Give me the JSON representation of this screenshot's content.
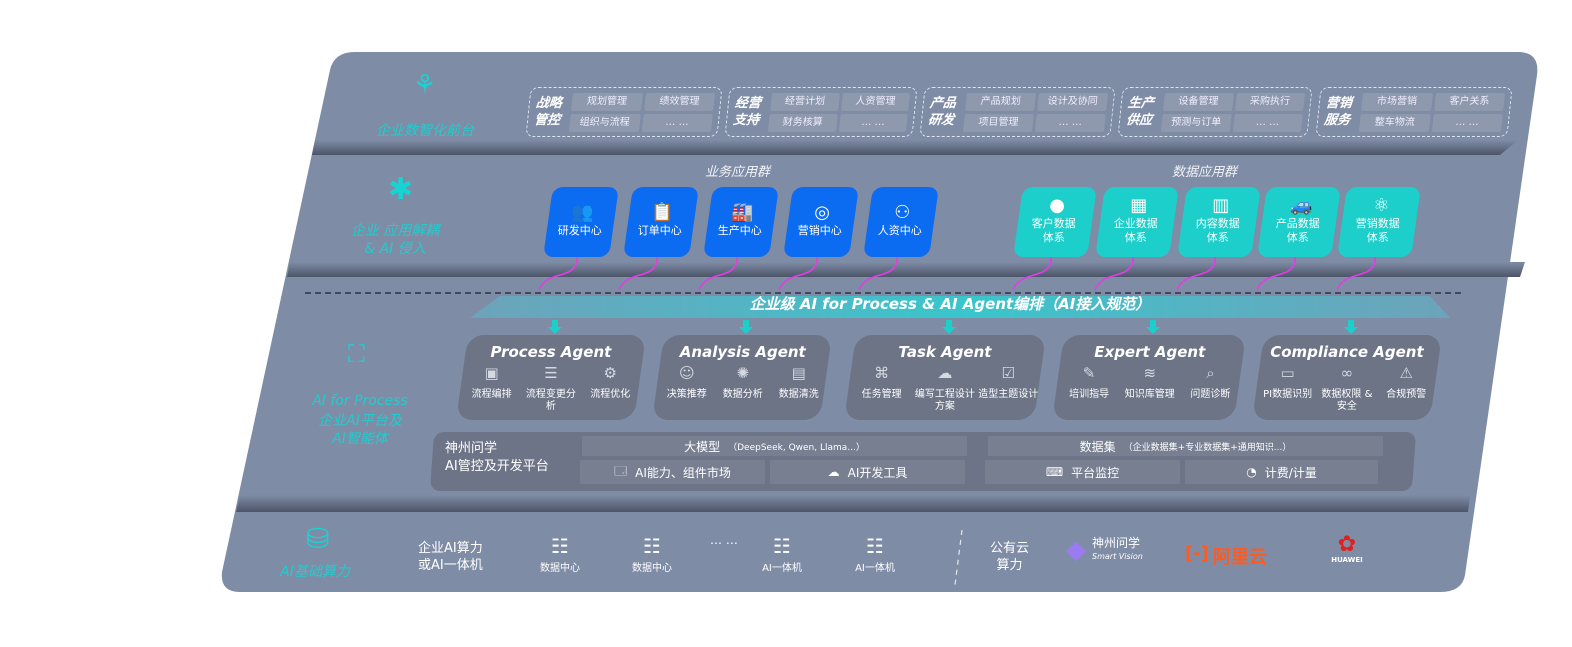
{
  "colors": {
    "panel": "#7f8ca6",
    "business_tile": "#0b6cf1",
    "data_tile": "#1ccfca",
    "accent": "#19d3d3",
    "arrow": "#e23de6",
    "agent_card": "#6c7486"
  },
  "layers": {
    "front": {
      "label": "企业数智化前台",
      "icon": "brain-icon"
    },
    "apps": {
      "label": "企业 应用解耦\n& AI 侵入",
      "icon": "molecule-node-icon"
    },
    "ai": {
      "label_en": "AI for Process",
      "label_cn": "企业AI平台及\nAI智能体",
      "icon": "face-scan-icon"
    },
    "infra": {
      "label": "AI基础算力",
      "icon": "database-icon"
    }
  },
  "front_groups": [
    {
      "title": "战略\n管控",
      "items": [
        "规划管理",
        "绩效管理",
        "组织与流程",
        "… …"
      ]
    },
    {
      "title": "经营\n支持",
      "items": [
        "经营计划",
        "人资管理",
        "财务核算",
        "… …"
      ]
    },
    {
      "title": "产品\n研发",
      "items": [
        "产品规划",
        "设计及协同",
        "项目管理",
        "… …"
      ]
    },
    {
      "title": "生产\n供应",
      "items": [
        "设备管理",
        "采购执行",
        "预测与订单",
        "… …"
      ]
    },
    {
      "title": "营销\n服务",
      "items": [
        "市场营销",
        "客户关系",
        "整车物流",
        "… …"
      ]
    }
  ],
  "business_apps": {
    "title": "业务应用群",
    "items": [
      {
        "label": "研发中心",
        "icon": "users-icon"
      },
      {
        "label": "订单中心",
        "icon": "clipboard-icon"
      },
      {
        "label": "生产中心",
        "icon": "factory-icon"
      },
      {
        "label": "营销中心",
        "icon": "target-icon"
      },
      {
        "label": "人资中心",
        "icon": "person-icon"
      }
    ]
  },
  "data_apps": {
    "title": "数据应用群",
    "items": [
      {
        "label": "客户数据\n体系",
        "icon": "user-icon"
      },
      {
        "label": "企业数据\n体系",
        "icon": "building-icon"
      },
      {
        "label": "内容数据\n体系",
        "icon": "books-icon"
      },
      {
        "label": "产品数据\n体系",
        "icon": "car-icon"
      },
      {
        "label": "营销数据\n体系",
        "icon": "atom-icon"
      }
    ]
  },
  "banner": "企业级 AI for Process & AI Agent编排（AI接入规范）",
  "agents": [
    {
      "title": "Process Agent",
      "items": [
        {
          "label": "流程编排",
          "icon": "workflow-icon"
        },
        {
          "label": "流程变更分析",
          "icon": "list-icon"
        },
        {
          "label": "流程优化",
          "icon": "optimize-icon"
        }
      ]
    },
    {
      "title": "Analysis Agent",
      "items": [
        {
          "label": "决策推荐",
          "icon": "head-icon"
        },
        {
          "label": "数据分析",
          "icon": "gear-icon"
        },
        {
          "label": "数据清洗",
          "icon": "document-icon"
        }
      ]
    },
    {
      "title": "Task Agent",
      "items": [
        {
          "label": "任务管理",
          "icon": "network-icon"
        },
        {
          "label": "编写工程设计方案",
          "icon": "cloud-icon"
        },
        {
          "label": "造型主题设计",
          "icon": "checklist-icon"
        }
      ]
    },
    {
      "title": "Expert Agent",
      "items": [
        {
          "label": "培训指导",
          "icon": "training-icon"
        },
        {
          "label": "知识库管理",
          "icon": "layers-icon"
        },
        {
          "label": "问题诊断",
          "icon": "diagnosis-icon"
        }
      ]
    },
    {
      "title": "Compliance Agent",
      "items": [
        {
          "label": "PI数据识别",
          "icon": "id-card-icon"
        },
        {
          "label": "数据权限 &\n安全",
          "icon": "link-icon"
        },
        {
          "label": "合规预警",
          "icon": "alert-icon"
        }
      ]
    }
  ],
  "platform": {
    "title": "神州问学\nAI管控及开发平台",
    "model_bar": {
      "label": "大模型",
      "note": "（DeepSeek, Qwen, Llama...）"
    },
    "model_items": [
      {
        "label": "AI能力、组件市场",
        "icon": "marketplace-icon"
      },
      {
        "label": "AI开发工具",
        "icon": "dev-tool-icon"
      }
    ],
    "dataset_bar": {
      "label": "数据集",
      "note": "（企业数据集+专业数据集+通用知识...）"
    },
    "dataset_items": [
      {
        "label": "平台监控",
        "icon": "monitor-icon"
      },
      {
        "label": "计费/计量",
        "icon": "gauge-icon"
      }
    ]
  },
  "infra": {
    "private_label": "企业AI算力\n或AI一体机",
    "servers": [
      {
        "label": "数据中心",
        "icon": "server-icon"
      },
      {
        "label": "数据中心",
        "icon": "server-icon"
      },
      {
        "label": "AI一体机",
        "icon": "server-icon"
      },
      {
        "label": "AI一体机",
        "icon": "server-icon"
      }
    ],
    "ellipsis": "… …",
    "public_label": "公有云\n算力",
    "vendors": [
      {
        "name": "神州问学",
        "sub": "Smart Vision"
      },
      {
        "name": "阿里云"
      },
      {
        "name": "HUAWEI"
      }
    ]
  }
}
